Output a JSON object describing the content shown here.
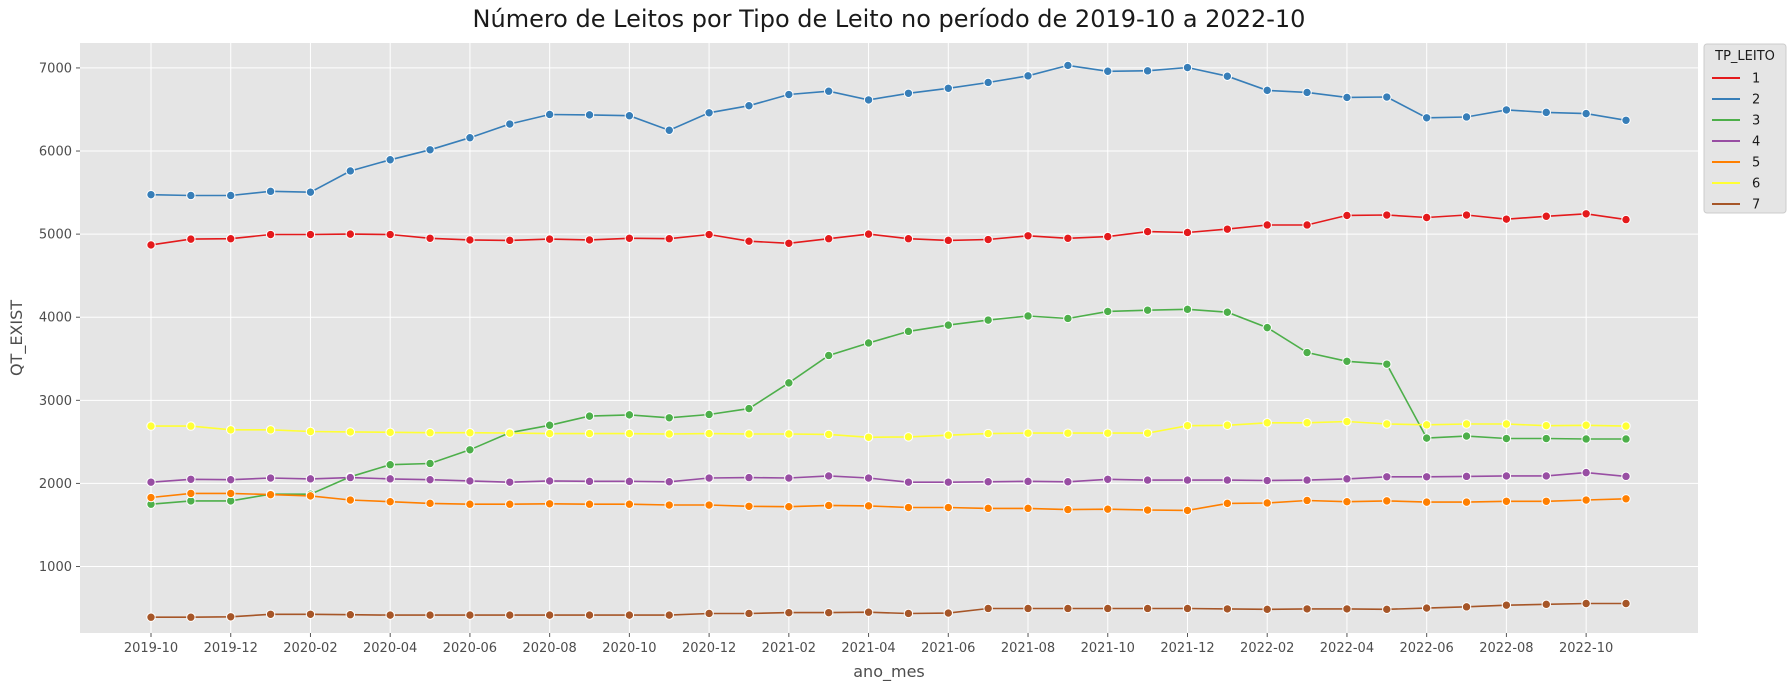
{
  "chart_data": {
    "type": "line",
    "title": "Número de Leitos por Tipo de Leito no período de 2019-10 a 2022-10",
    "xlabel": "ano_mes",
    "ylabel": "QT_EXIST",
    "x": [
      "2019-10",
      "2019-11",
      "2019-12",
      "2020-01",
      "2020-02",
      "2020-03",
      "2020-04",
      "2020-05",
      "2020-06",
      "2020-07",
      "2020-08",
      "2020-09",
      "2020-10",
      "2020-11",
      "2020-12",
      "2021-01",
      "2021-02",
      "2021-03",
      "2021-04",
      "2021-05",
      "2021-06",
      "2021-07",
      "2021-08",
      "2021-09",
      "2021-10",
      "2021-11",
      "2021-12",
      "2022-01",
      "2022-02",
      "2022-03",
      "2022-04",
      "2022-05",
      "2022-06",
      "2022-07",
      "2022-08",
      "2022-09",
      "2022-10",
      "2022-11"
    ],
    "x_tick_labels": [
      "2019-10",
      "2019-12",
      "2020-02",
      "2020-04",
      "2020-06",
      "2020-08",
      "2020-10",
      "2020-12",
      "2021-02",
      "2021-04",
      "2021-06",
      "2021-08",
      "2021-10",
      "2021-12",
      "2022-02",
      "2022-04",
      "2022-06",
      "2022-08",
      "2022-10"
    ],
    "y_ticks": [
      1000,
      2000,
      3000,
      4000,
      5000,
      6000,
      7000
    ],
    "ylim": [
      200,
      7300
    ],
    "grid": true,
    "legend_title": "TP_LEITO",
    "legend_position": "upper-right-outside",
    "series": [
      {
        "name": "1",
        "color": "#e41a1c",
        "values": [
          4870,
          4940,
          4945,
          4995,
          4995,
          5000,
          4995,
          4950,
          4930,
          4925,
          4940,
          4930,
          4950,
          4945,
          4995,
          4915,
          4890,
          4945,
          5000,
          4945,
          4925,
          4935,
          4980,
          4950,
          4970,
          5030,
          5020,
          5060,
          5110,
          5110,
          5225,
          5230,
          5200,
          5230,
          5180,
          5215,
          5245,
          5175
        ]
      },
      {
        "name": "2",
        "color": "#377eb8",
        "values": [
          5475,
          5465,
          5465,
          5515,
          5505,
          5760,
          5895,
          6015,
          6160,
          6325,
          6440,
          6435,
          6425,
          6250,
          6460,
          6545,
          6680,
          6720,
          6615,
          6695,
          6755,
          6825,
          6905,
          7030,
          6960,
          6965,
          7005,
          6900,
          6730,
          6705,
          6645,
          6650,
          6400,
          6410,
          6495,
          6465,
          6450,
          6370
        ]
      },
      {
        "name": "3",
        "color": "#4daf4a",
        "values": [
          1750,
          1790,
          1790,
          1870,
          1870,
          2080,
          2225,
          2240,
          2405,
          2610,
          2700,
          2810,
          2825,
          2790,
          2830,
          2900,
          3210,
          3540,
          3690,
          3830,
          3905,
          3965,
          4015,
          3985,
          4070,
          4085,
          4095,
          4060,
          3875,
          3575,
          3470,
          3435,
          2545,
          2570,
          2540,
          2540,
          2535,
          2535
        ]
      },
      {
        "name": "4",
        "color": "#984ea3",
        "values": [
          2015,
          2050,
          2045,
          2065,
          2055,
          2070,
          2055,
          2045,
          2030,
          2015,
          2030,
          2025,
          2025,
          2020,
          2065,
          2070,
          2065,
          2090,
          2065,
          2015,
          2015,
          2020,
          2025,
          2020,
          2050,
          2040,
          2040,
          2040,
          2035,
          2040,
          2055,
          2080,
          2080,
          2085,
          2090,
          2090,
          2130,
          2085
        ]
      },
      {
        "name": "5",
        "color": "#ff7f00",
        "values": [
          1830,
          1880,
          1880,
          1865,
          1850,
          1800,
          1780,
          1760,
          1750,
          1750,
          1755,
          1750,
          1750,
          1740,
          1740,
          1725,
          1720,
          1735,
          1730,
          1710,
          1710,
          1700,
          1700,
          1685,
          1690,
          1680,
          1675,
          1760,
          1765,
          1795,
          1780,
          1790,
          1775,
          1775,
          1785,
          1785,
          1800,
          1815
        ]
      },
      {
        "name": "6",
        "color": "#ffff33",
        "values": [
          2690,
          2690,
          2645,
          2645,
          2625,
          2620,
          2615,
          2610,
          2610,
          2605,
          2600,
          2600,
          2600,
          2595,
          2600,
          2595,
          2595,
          2590,
          2555,
          2560,
          2580,
          2600,
          2605,
          2605,
          2605,
          2605,
          2695,
          2700,
          2730,
          2730,
          2745,
          2715,
          2705,
          2715,
          2715,
          2695,
          2700,
          2690
        ]
      },
      {
        "name": "7",
        "color": "#a65628",
        "values": [
          390,
          390,
          395,
          425,
          425,
          420,
          415,
          415,
          415,
          415,
          415,
          415,
          415,
          415,
          435,
          435,
          445,
          445,
          450,
          435,
          440,
          495,
          495,
          495,
          495,
          495,
          495,
          490,
          485,
          490,
          490,
          485,
          500,
          515,
          535,
          545,
          555,
          555
        ]
      }
    ]
  }
}
